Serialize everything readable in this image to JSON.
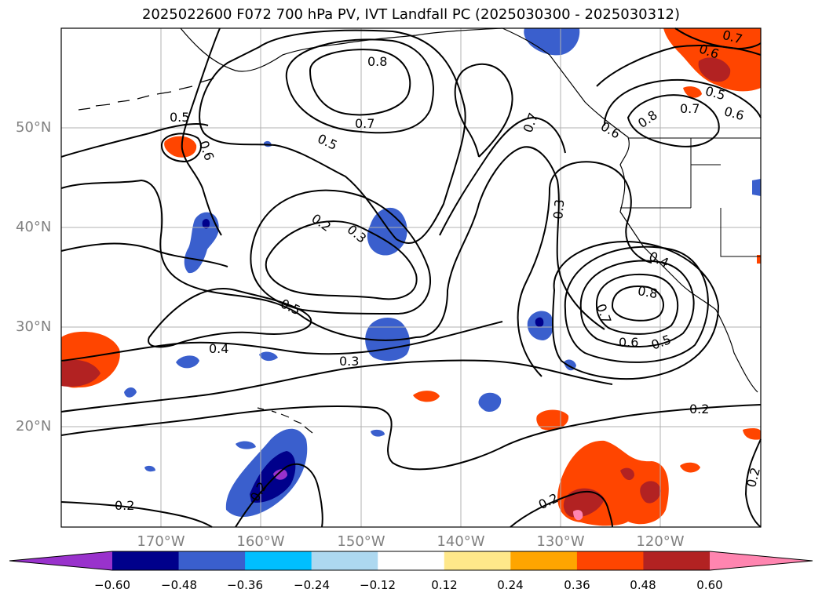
{
  "title": "2025022600 F072 700 hPa PV, IVT Landfall PC (2025030300 - 2025030312)",
  "lat_labels": [
    "50°N",
    "40°N",
    "30°N",
    "20°N"
  ],
  "lon_labels": [
    "170°W",
    "160°W",
    "150°W",
    "140°W",
    "130°W",
    "120°W"
  ],
  "colorbar": {
    "ticks": [
      "−0.60",
      "−0.48",
      "−0.36",
      "−0.24",
      "−0.12",
      "0.12",
      "0.24",
      "0.36",
      "0.48",
      "0.60"
    ],
    "colors": [
      "#9932cc",
      "#00008b",
      "#3a5fcd",
      "#00bfff",
      "#add8f0",
      "#ffffff",
      "#ffe88a",
      "#ffa500",
      "#ff4500",
      "#b22222",
      "#ff85b0"
    ]
  },
  "contour_labels": [
    "0.8",
    "0.7",
    "0.5",
    "0.6",
    "0.5",
    "0.7",
    "0.2",
    "0.3",
    "0.5",
    "0.4",
    "0.3",
    "0.3",
    "0.4",
    "0.8",
    "0.7",
    "0.6",
    "0.5",
    "0.7",
    "0.6",
    "0.5",
    "0.7",
    "0.8",
    "0.6",
    "0.6",
    "0.2",
    "0.2",
    "0.2",
    "0.2",
    "0.2"
  ],
  "colors": {
    "contour": "#000000",
    "grid": "#b0b0b0",
    "axis_text": "#808080"
  }
}
